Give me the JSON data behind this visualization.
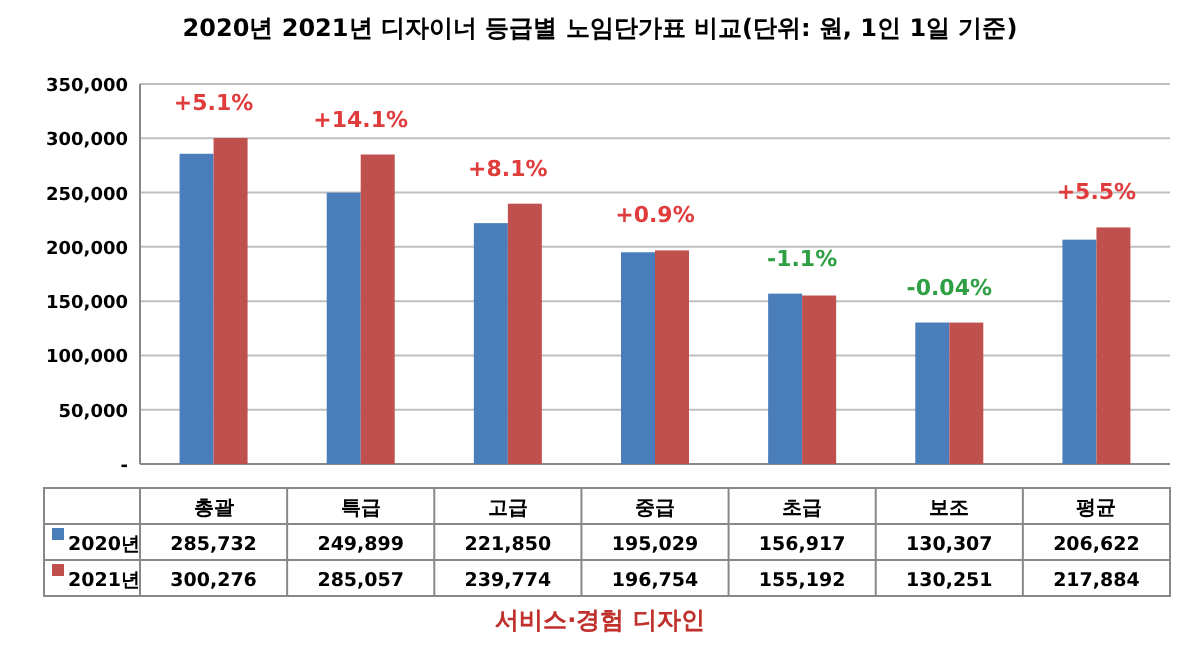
{
  "chart_data": {
    "type": "bar",
    "title": "2020년 2021년 디자이너 등급별 노임단가표 비교(단위: 원, 1인 1일 기준)",
    "categories": [
      "총괄",
      "특급",
      "고급",
      "중급",
      "초급",
      "보조",
      "평균"
    ],
    "series": [
      {
        "name": "2020년",
        "color": "#4a7ebb",
        "values": [
          285732,
          249899,
          221850,
          195029,
          156917,
          130307,
          206622
        ],
        "value_labels": [
          "285,732",
          "249,899",
          "221,850",
          "195,029",
          "156,917",
          "130,307",
          "206,622"
        ]
      },
      {
        "name": "2021년",
        "color": "#c0504d",
        "values": [
          300276,
          285057,
          239774,
          196754,
          155192,
          130251,
          217884
        ],
        "value_labels": [
          "300,276",
          "285,057",
          "239,774",
          "196,754",
          "155,192",
          "130,251",
          "217,884"
        ]
      }
    ],
    "ylim": [
      0,
      350000
    ],
    "yticks": [
      {
        "value": 0,
        "label": "-"
      },
      {
        "value": 50000,
        "label": "50,000"
      },
      {
        "value": 100000,
        "label": "100,000"
      },
      {
        "value": 150000,
        "label": "150,000"
      },
      {
        "value": 200000,
        "label": "200,000"
      },
      {
        "value": 250000,
        "label": "250,000"
      },
      {
        "value": 300000,
        "label": "300,000"
      },
      {
        "value": 350000,
        "label": "350,000"
      }
    ],
    "grid": "y",
    "legend": "bottom",
    "annotations": [
      "+5.1%",
      "+14.1%",
      "+8.1%",
      "+0.9%",
      "-1.1%",
      "-0.04%",
      "+5.5%",
      "서비스·경험 디자인"
    ]
  }
}
